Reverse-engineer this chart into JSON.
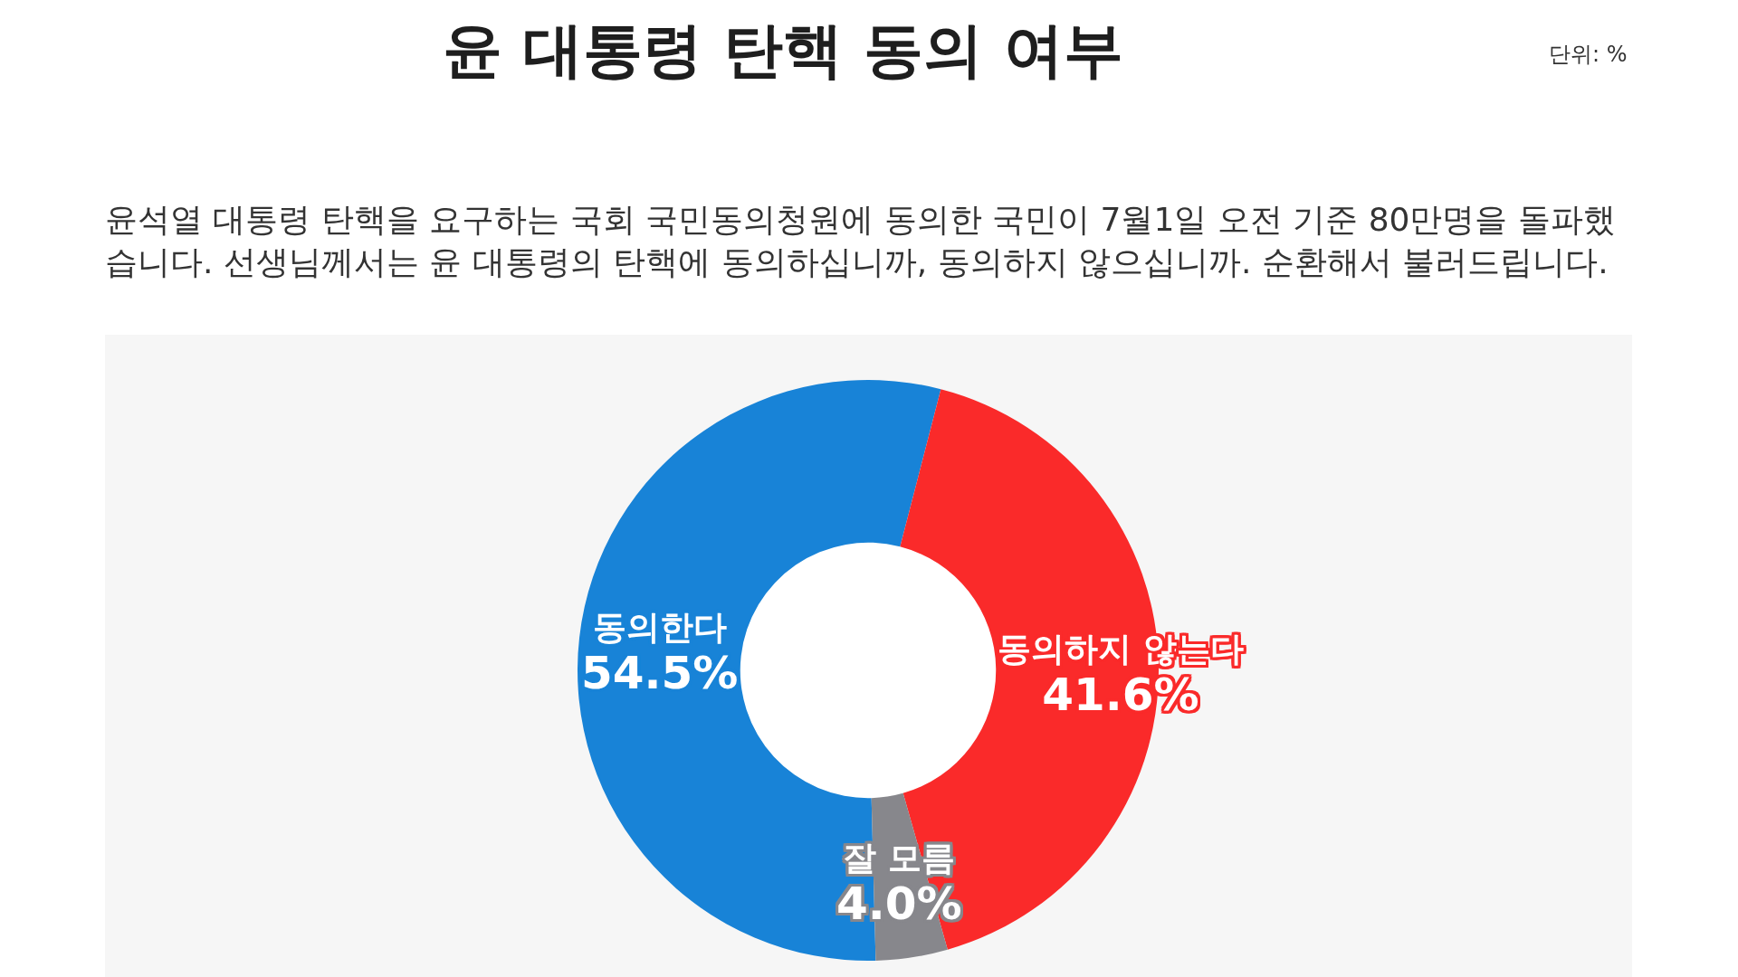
{
  "chart_data": {
    "type": "donut",
    "title": "윤 대통령 탄핵 동의 여부",
    "subtitle": "윤석열 대통령 탄핵을 요구하는 국회 국민동의청원에 동의한 국민이 7월1일 오전 기준 80만명을 돌파했습니다. 선생님께서는 윤 대통령의 탄핵에 동의하십니까, 동의하지 않으십니까. 순환해서 불러드립니다.",
    "annotations": [
      "단위: %"
    ],
    "categories": [
      "동의한다",
      "동의하지 않는다",
      "잘 모름"
    ],
    "values": [
      54.5,
      41.6,
      4.0
    ],
    "colors": [
      "#1883d7",
      "#fa2a2a",
      "#87878c"
    ],
    "value_labels": [
      "54.5%",
      "41.6%",
      "4.0%"
    ]
  }
}
